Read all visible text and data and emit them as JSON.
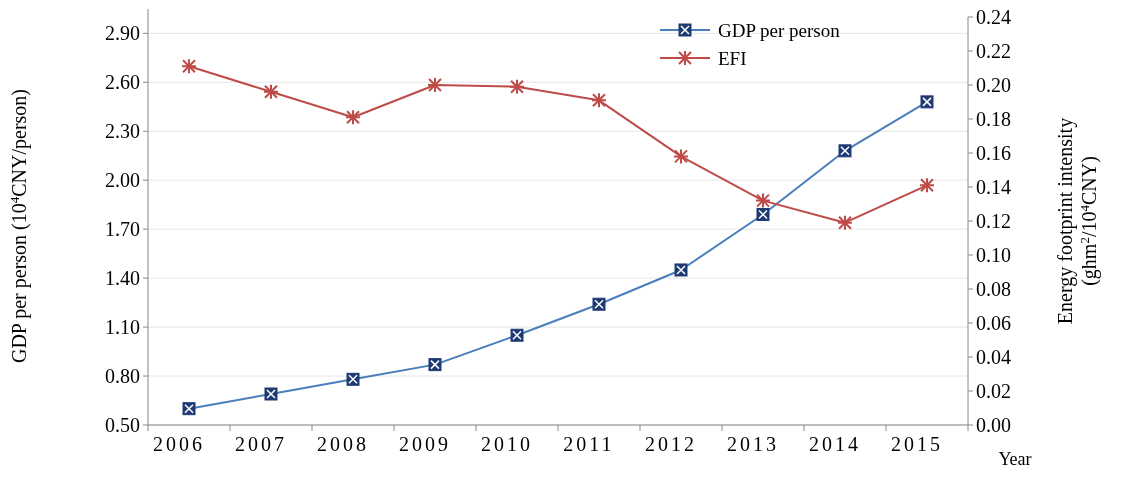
{
  "chart_data": {
    "type": "line",
    "xlabel": "Year",
    "ylabel": "GDP per person (10$^{4}$CNY/person)",
    "y2label": "Energy footprint intensity (ghm$^{2}$/10$^{4}$CNY)",
    "categories": [
      "2006",
      "2007",
      "2008",
      "2009",
      "2010",
      "2011",
      "2012",
      "2013",
      "2014",
      "2015"
    ],
    "series": [
      {
        "name": "GDP per person",
        "color": "#4a7ebb",
        "marker": "square",
        "values": [
          0.6,
          0.69,
          0.78,
          0.87,
          1.05,
          1.24,
          1.45,
          1.79,
          2.18,
          2.48
        ]
      },
      {
        "name": "EFI",
        "color": "#be4b48",
        "marker": "cross",
        "axis": "y2",
        "values": [
          0.211,
          0.196,
          0.181,
          0.2,
          0.199,
          0.191,
          0.158,
          0.132,
          0.119,
          0.141
        ]
      }
    ],
    "ylim": [
      0.5,
      3.0
    ],
    "yticks": [
      {
        "value": 0.5,
        "label": "0.50"
      },
      {
        "value": 0.8,
        "label": "0.80"
      },
      {
        "value": 1.1,
        "label": "1.10"
      },
      {
        "value": 1.4,
        "label": "1.40"
      },
      {
        "value": 1.7,
        "label": "1.70"
      },
      {
        "value": 2.0,
        "label": "2.00"
      },
      {
        "value": 2.3,
        "label": "2.30"
      },
      {
        "value": 2.6,
        "label": "2.60"
      },
      {
        "value": 2.9,
        "label": "2.90"
      }
    ],
    "y2lim": [
      0,
      0.24
    ],
    "y2ticks": [
      {
        "value": 0,
        "label": "0.00"
      },
      {
        "value": 0.02,
        "label": "0.02"
      },
      {
        "value": 0.04,
        "label": "0.04"
      },
      {
        "value": 0.06,
        "label": "0.06"
      },
      {
        "value": 0.08,
        "label": "0.08"
      },
      {
        "value": 0.1,
        "label": "0.10"
      },
      {
        "value": 0.12,
        "label": "0.12"
      },
      {
        "value": 0.14,
        "label": "0.14"
      },
      {
        "value": 0.16,
        "label": "0.16"
      },
      {
        "value": 0.18,
        "label": "0.18"
      },
      {
        "value": 0.2,
        "label": "0.20"
      },
      {
        "value": 0.22,
        "label": "0.22"
      },
      {
        "value": 0.24,
        "label": "0.24"
      }
    ],
    "grid": "y",
    "legend": "top right",
    "line_style": "solid"
  }
}
